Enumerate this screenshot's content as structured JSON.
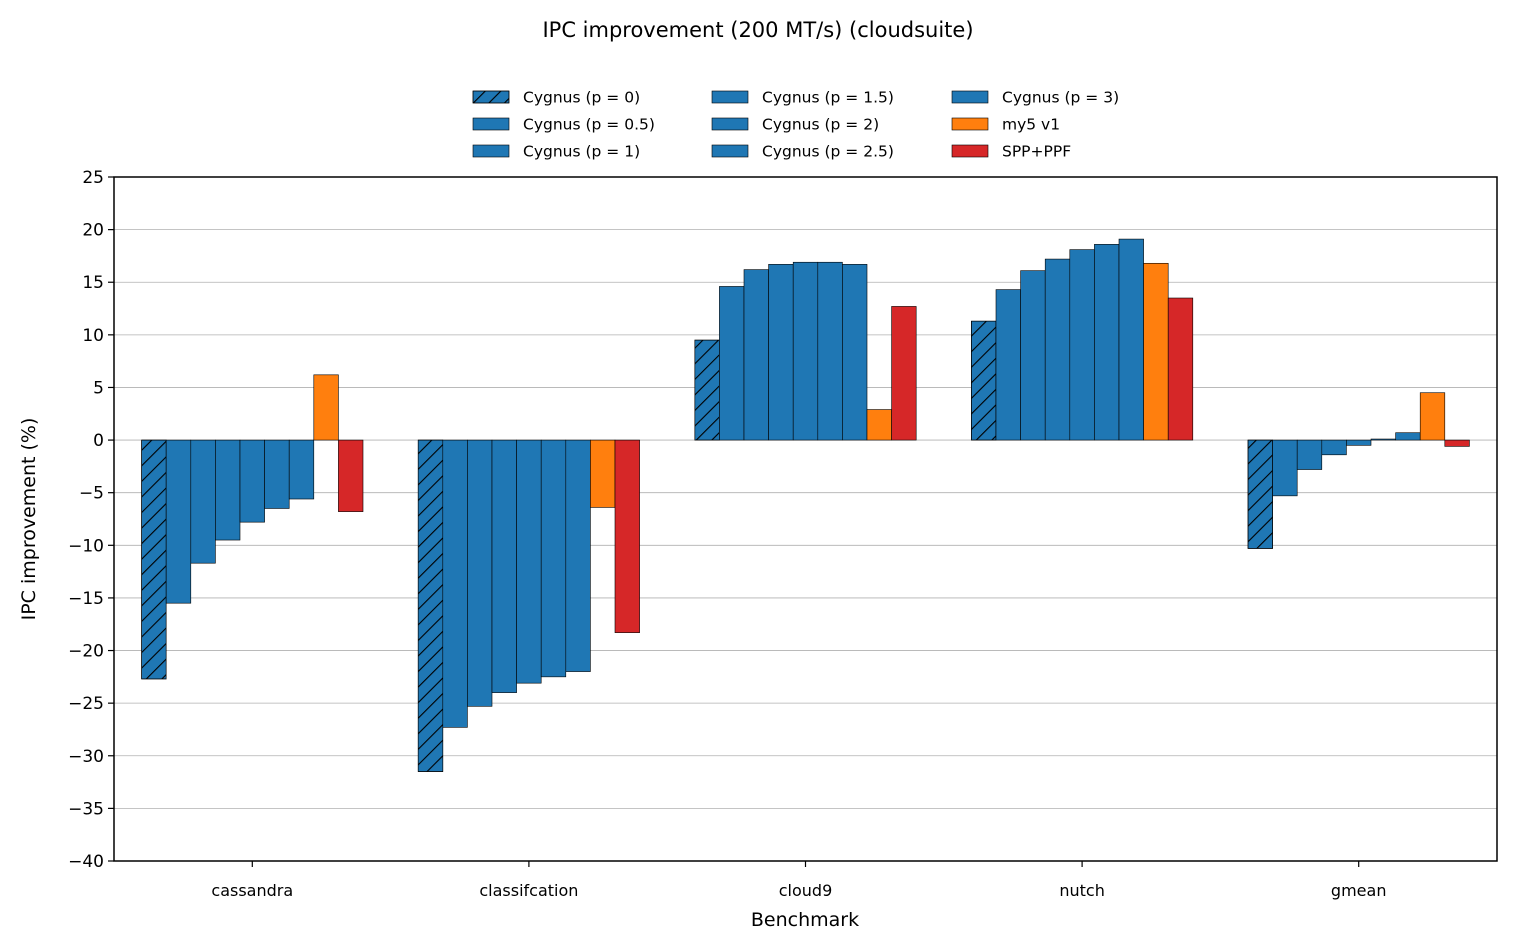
{
  "chart_data": {
    "type": "bar",
    "title": "IPC improvement (200 MT/s) (cloudsuite)",
    "xlabel": "Benchmark",
    "ylabel": "IPC improvement (%)",
    "ylim": [
      -40,
      25
    ],
    "yticks": [
      -40,
      -35,
      -30,
      -25,
      -20,
      -15,
      -10,
      -5,
      0,
      5,
      10,
      15,
      20,
      25
    ],
    "ytick_labels": [
      "−40",
      "−35",
      "−30",
      "−25",
      "−20",
      "−15",
      "−10",
      "−5",
      "0",
      "5",
      "10",
      "15",
      "20",
      "25"
    ],
    "grid": "horizontal",
    "legend_position": "top-center",
    "categories": [
      "cassandra",
      "classifcation",
      "cloud9",
      "nutch",
      "gmean"
    ],
    "series": [
      {
        "name": "Cygnus (p = 0)",
        "color": "#1f77b4",
        "hatch": true,
        "values": [
          -22.7,
          -31.5,
          9.5,
          11.3,
          -10.3
        ]
      },
      {
        "name": "Cygnus (p = 0.5)",
        "color": "#1f77b4",
        "hatch": false,
        "values": [
          -15.5,
          -27.3,
          14.6,
          14.3,
          -5.3
        ]
      },
      {
        "name": "Cygnus (p = 1)",
        "color": "#1f77b4",
        "hatch": false,
        "values": [
          -11.7,
          -25.3,
          16.2,
          16.1,
          -2.8
        ]
      },
      {
        "name": "Cygnus (p = 1.5)",
        "color": "#1f77b4",
        "hatch": false,
        "values": [
          -9.5,
          -24.0,
          16.7,
          17.2,
          -1.4
        ]
      },
      {
        "name": "Cygnus (p = 2)",
        "color": "#1f77b4",
        "hatch": false,
        "values": [
          -7.8,
          -23.1,
          16.9,
          18.1,
          -0.5
        ]
      },
      {
        "name": "Cygnus (p = 2.5)",
        "color": "#1f77b4",
        "hatch": false,
        "values": [
          -6.5,
          -22.5,
          16.9,
          18.6,
          0.1
        ]
      },
      {
        "name": "Cygnus (p = 3)",
        "color": "#1f77b4",
        "hatch": false,
        "values": [
          -5.6,
          -22.0,
          16.7,
          19.1,
          0.7
        ]
      },
      {
        "name": "my5 v1",
        "color": "#ff7f0e",
        "hatch": false,
        "values": [
          6.2,
          -6.4,
          2.9,
          16.8,
          4.5
        ]
      },
      {
        "name": "SPP+PPF",
        "color": "#d62728",
        "hatch": false,
        "values": [
          -6.8,
          -18.3,
          12.7,
          13.5,
          -0.6
        ]
      }
    ]
  }
}
